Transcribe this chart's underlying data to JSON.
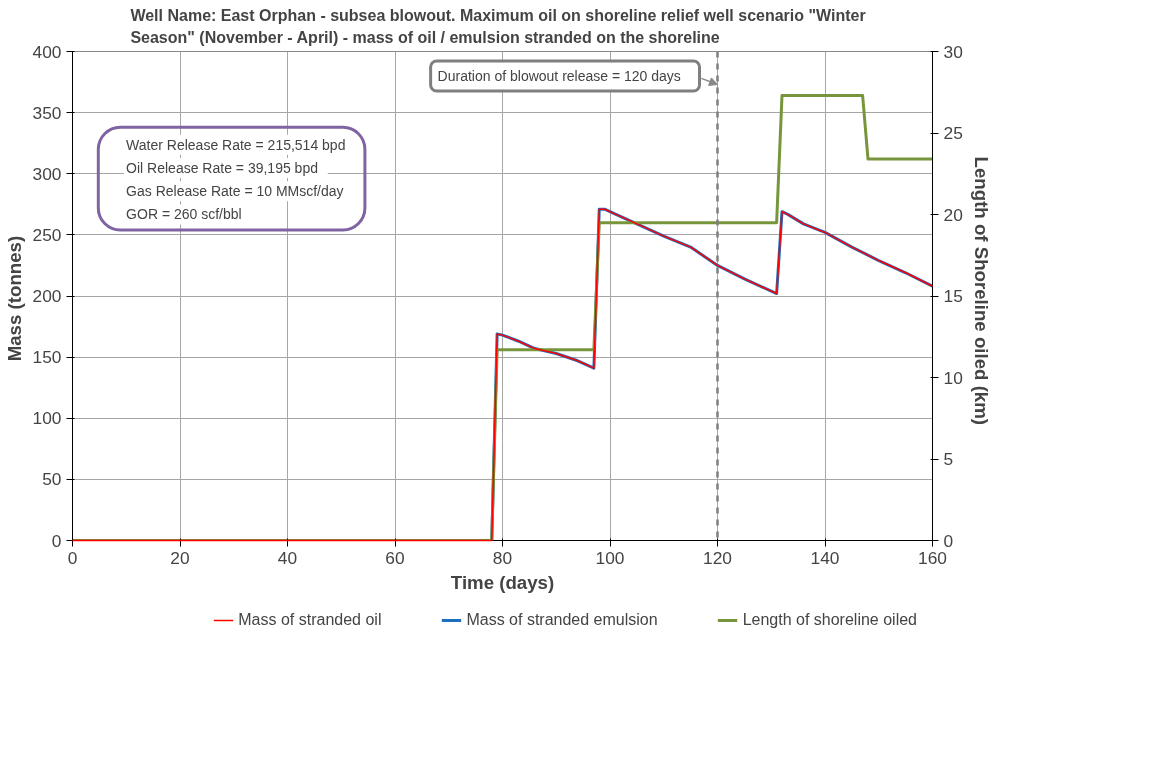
{
  "chart_data": {
    "type": "line",
    "title": "Well Name:  East Orphan - subsea blowout.  Maximum oil on shoreline relief well scenario \"Winter Season\" (November - April)  -  mass of oil / emulsion stranded on the shoreline",
    "xlabel": "Time (days)",
    "ylabel": "Mass  (tonnes)",
    "y2label": "Length of  Shoreline  oiled (km)",
    "xlim": [
      0,
      160
    ],
    "xticks": [
      0,
      20,
      40,
      60,
      80,
      100,
      120,
      140,
      160
    ],
    "ylim": [
      0,
      400
    ],
    "yticks": [
      0,
      50,
      100,
      150,
      200,
      250,
      300,
      350,
      400
    ],
    "y2lim": [
      0,
      30
    ],
    "y2ticks": [
      0,
      5,
      10,
      15,
      20,
      25,
      30
    ],
    "grid": true,
    "legend": "bottom",
    "marker": "none",
    "line_style": "solid",
    "annotations": [
      "Water Release Rate =  215,514  bpd",
      "Oil Release Rate =  39,195  bpd",
      "Gas Release Rate =  10   MMscf/day",
      "GOR =  260   scf/bbl"
    ],
    "ref_lines": [
      {
        "axis": "x",
        "value": 120,
        "label": "Duration of blowout release  =  120  days",
        "color": "#7f7f7f",
        "line_style": "dashed"
      }
    ],
    "series": [
      {
        "name": "Mass of stranded oil",
        "color": "#ff0000",
        "x": [
          0,
          78,
          79,
          80,
          83,
          86,
          90,
          94,
          97,
          98,
          99,
          101,
          105,
          110,
          115,
          120,
          125,
          130,
          131,
          132,
          133,
          136,
          140,
          145,
          150,
          155,
          160
        ],
        "values": [
          0,
          0,
          169,
          168,
          163,
          157,
          153,
          147,
          141,
          271,
          271,
          267,
          259,
          249,
          240,
          225,
          214,
          204,
          202,
          269,
          267,
          259,
          252,
          240,
          229,
          219,
          208
        ]
      },
      {
        "name": "Mass of stranded emulsion",
        "color": "#1f6fc0",
        "x": [
          0,
          78,
          79,
          80,
          83,
          86,
          90,
          94,
          97,
          98,
          99,
          101,
          105,
          110,
          115,
          120,
          125,
          130,
          131,
          132,
          133,
          136,
          140,
          145,
          150,
          155,
          160
        ],
        "values": [
          0,
          0,
          169,
          168,
          163,
          157,
          153,
          147,
          141,
          271,
          271,
          267,
          259,
          249,
          240,
          225,
          214,
          204,
          202,
          269,
          267,
          259,
          252,
          240,
          229,
          219,
          208
        ]
      },
      {
        "name": "Length of shoreline oiled",
        "color": "#77963c",
        "axis": "y2",
        "x": [
          0,
          78,
          79,
          97,
          98,
          131,
          132,
          147,
          148,
          160
        ],
        "values": [
          0,
          0,
          11.7,
          11.7,
          19.5,
          19.5,
          27.3,
          27.3,
          23.4,
          23.4
        ]
      }
    ]
  }
}
